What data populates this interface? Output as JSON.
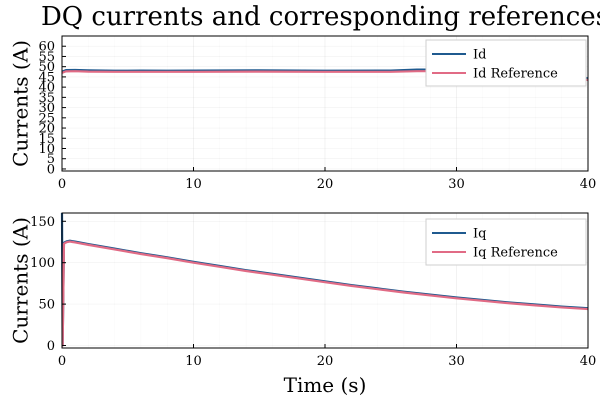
{
  "chart_data": [
    {
      "type": "line",
      "title": "DQ currents and corresponding references",
      "ylabel": "Currents (A)",
      "xlabel": "",
      "xlim": [
        0,
        40
      ],
      "ylim": [
        -1,
        65
      ],
      "xticks": [
        "0",
        "10",
        "20",
        "30",
        "40"
      ],
      "yticks": [
        "0",
        "5",
        "10",
        "15",
        "20",
        "25",
        "30",
        "35",
        "40",
        "45",
        "50",
        "55",
        "60"
      ],
      "grid": true,
      "legend": "top-right",
      "series": [
        {
          "name": "Id",
          "color": "#1f5a8f",
          "x": [
            0,
            0.3,
            1,
            2,
            4,
            6,
            8,
            10,
            15,
            20,
            25,
            27,
            28,
            30,
            32,
            35,
            38,
            39,
            40
          ],
          "y": [
            47.5,
            48.3,
            48.4,
            48.2,
            48.0,
            48.1,
            48.0,
            48.1,
            48.2,
            48.0,
            48.1,
            48.6,
            48.6,
            48.5,
            47.0,
            47.0,
            47.0,
            45.0,
            44.3
          ]
        },
        {
          "name": "Id Reference",
          "color": "#e16b85",
          "x": [
            0,
            0.3,
            1,
            2,
            4,
            6,
            8,
            10,
            15,
            20,
            25,
            27,
            28,
            30,
            32,
            35,
            38,
            39,
            40
          ],
          "y": [
            47.0,
            47.7,
            47.8,
            47.6,
            47.5,
            47.5,
            47.5,
            47.5,
            47.6,
            47.5,
            47.5,
            47.8,
            47.8,
            47.7,
            46.5,
            46.5,
            46.5,
            44.2,
            43.5
          ]
        }
      ]
    },
    {
      "type": "line",
      "title": "",
      "ylabel": "Currents (A)",
      "xlabel": "Time (s)",
      "xlim": [
        0,
        40
      ],
      "ylim": [
        -3,
        160
      ],
      "xticks": [
        "0",
        "10",
        "20",
        "30",
        "40"
      ],
      "yticks": [
        "0",
        "50",
        "100",
        "150"
      ],
      "grid": true,
      "legend": "top-right",
      "series": [
        {
          "name": "Iq",
          "color": "#1f5a8f",
          "x": [
            0,
            0.05,
            0.15,
            0.25,
            0.4,
            0.6,
            0.8,
            1,
            2,
            4,
            6,
            8,
            10,
            12,
            14,
            16,
            18,
            20,
            22,
            24,
            26,
            28,
            30,
            32,
            34,
            36,
            38,
            40
          ],
          "y": [
            160,
            0,
            124,
            125,
            126,
            126.5,
            126,
            125.5,
            122.5,
            117,
            111.5,
            106.5,
            101,
            96,
            91,
            86.5,
            82,
            77.5,
            73,
            69,
            65,
            61.5,
            58,
            55,
            52,
            49.5,
            47,
            45
          ]
        },
        {
          "name": "Iq Reference",
          "color": "#e16b85",
          "x": [
            0,
            0.05,
            0.15,
            0.25,
            0.4,
            0.6,
            0.8,
            1,
            2,
            4,
            6,
            8,
            10,
            12,
            14,
            16,
            18,
            20,
            22,
            24,
            26,
            28,
            30,
            32,
            34,
            36,
            38,
            40
          ],
          "y": [
            0,
            0,
            123,
            124,
            125,
            125.5,
            125,
            124.5,
            121.5,
            116,
            110.5,
            105.5,
            100,
            95,
            90,
            85.5,
            81,
            76.5,
            72,
            68,
            64,
            60.5,
            57,
            54,
            51,
            48.5,
            46,
            44
          ]
        }
      ]
    }
  ]
}
